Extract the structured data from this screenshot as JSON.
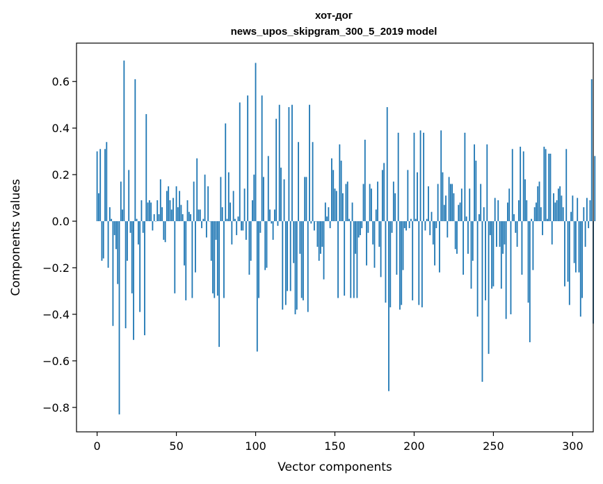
{
  "chart_data": {
    "type": "bar",
    "title": "хот-дог",
    "subtitle": "news_upos_skipgram_300_5_2019 model",
    "xlabel": "Vector components",
    "ylabel": "Components values",
    "xlim": [
      -13,
      313
    ],
    "ylim": [
      -0.905,
      0.765
    ],
    "xticks": [
      0,
      50,
      100,
      150,
      200,
      250,
      300
    ],
    "yticks": [
      -0.8,
      -0.6,
      -0.4,
      -0.2,
      0.0,
      0.2,
      0.4,
      0.6
    ],
    "ytick_labels": [
      "−0.8",
      "−0.6",
      "−0.4",
      "−0.2",
      "0.0",
      "0.2",
      "0.4",
      "0.6"
    ],
    "xtick_labels": [
      "0",
      "50",
      "100",
      "150",
      "200",
      "250",
      "300"
    ],
    "color": "#1f77b4",
    "grid": false,
    "x_start": 0,
    "values": [
      0.3,
      0.12,
      0.31,
      -0.17,
      -0.16,
      0.31,
      0.34,
      -0.2,
      0.06,
      0.01,
      -0.45,
      -0.06,
      -0.12,
      -0.27,
      -0.83,
      0.17,
      0.05,
      0.69,
      -0.46,
      -0.17,
      0.22,
      -0.05,
      -0.31,
      -0.51,
      0.61,
      0.01,
      -0.1,
      -0.39,
      0.09,
      -0.05,
      -0.49,
      0.46,
      0.08,
      0.09,
      0.08,
      -0.04,
      0.03,
      0.0,
      0.09,
      0.03,
      0.18,
      0.06,
      -0.08,
      -0.09,
      0.13,
      0.15,
      0.09,
      0.05,
      0.1,
      -0.31,
      0.15,
      0.06,
      0.13,
      0.07,
      0.03,
      -0.19,
      -0.34,
      0.09,
      0.04,
      0.03,
      -0.33,
      0.17,
      -0.22,
      0.27,
      0.05,
      0.05,
      -0.03,
      0.01,
      0.2,
      -0.07,
      0.15,
      0.0,
      -0.17,
      -0.31,
      -0.33,
      -0.08,
      -0.32,
      -0.54,
      0.19,
      0.06,
      -0.33,
      0.42,
      0.01,
      0.21,
      0.08,
      -0.1,
      0.13,
      0.01,
      -0.06,
      0.02,
      0.51,
      -0.04,
      -0.04,
      0.14,
      -0.08,
      0.54,
      -0.23,
      -0.17,
      0.09,
      0.2,
      0.68,
      -0.56,
      -0.33,
      -0.05,
      0.54,
      0.19,
      -0.21,
      -0.2,
      0.28,
      0.05,
      -0.01,
      -0.08,
      0.05,
      0.44,
      -0.02,
      0.5,
      0.23,
      -0.38,
      0.18,
      -0.36,
      -0.3,
      0.49,
      -0.3,
      0.5,
      -0.18,
      -0.4,
      -0.38,
      0.34,
      -0.14,
      -0.33,
      -0.34,
      0.19,
      0.19,
      -0.39,
      0.5,
      -0.01,
      0.34,
      -0.04,
      0.0,
      -0.11,
      -0.17,
      -0.14,
      -0.11,
      -0.25,
      0.08,
      0.02,
      0.06,
      -0.03,
      0.27,
      0.22,
      0.14,
      0.13,
      -0.33,
      0.33,
      0.26,
      0.12,
      -0.32,
      0.16,
      0.17,
      0.01,
      -0.33,
      0.08,
      -0.33,
      -0.14,
      -0.33,
      -0.07,
      -0.06,
      -0.03,
      0.16,
      0.35,
      -0.19,
      -0.05,
      0.16,
      0.14,
      -0.1,
      -0.2,
      0.05,
      0.17,
      -0.11,
      -0.24,
      0.22,
      0.25,
      -0.35,
      0.49,
      -0.73,
      -0.37,
      -0.05,
      0.17,
      0.12,
      -0.23,
      0.38,
      -0.38,
      -0.36,
      -0.21,
      -0.03,
      -0.04,
      0.22,
      -0.03,
      0.01,
      -0.34,
      0.38,
      0.01,
      0.21,
      -0.36,
      0.39,
      -0.37,
      0.38,
      -0.04,
      0.01,
      0.15,
      -0.06,
      0.04,
      -0.1,
      -0.19,
      -0.03,
      0.16,
      -0.22,
      0.39,
      0.21,
      0.07,
      0.11,
      -0.07,
      0.19,
      0.16,
      0.16,
      0.12,
      -0.12,
      -0.14,
      0.07,
      0.08,
      0.14,
      -0.23,
      0.38,
      0.02,
      -0.14,
      0.14,
      -0.29,
      -0.17,
      0.33,
      0.26,
      -0.41,
      0.03,
      0.16,
      -0.69,
      0.06,
      -0.34,
      0.33,
      -0.57,
      -0.06,
      -0.29,
      -0.28,
      0.1,
      -0.11,
      0.09,
      -0.11,
      -0.29,
      -0.14,
      -0.1,
      -0.42,
      0.08,
      0.14,
      -0.4,
      0.31,
      0.03,
      -0.05,
      -0.11,
      0.09,
      0.32,
      -0.23,
      0.3,
      0.18,
      0.09,
      -0.35,
      -0.52,
      0.01,
      -0.21,
      0.06,
      0.08,
      0.15,
      0.17,
      0.06,
      -0.06,
      0.32,
      0.31,
      0.01,
      0.29,
      0.29,
      -0.1,
      0.12,
      0.08,
      0.09,
      0.14,
      0.15,
      0.11,
      0.06,
      -0.28,
      0.31,
      -0.26,
      -0.36,
      0.04,
      0.11,
      -0.18,
      -0.22,
      0.1,
      -0.22,
      -0.41,
      -0.33,
      0.06,
      -0.11,
      0.1,
      -0.03,
      0.09,
      0.61,
      -0.44,
      0.28
    ]
  }
}
